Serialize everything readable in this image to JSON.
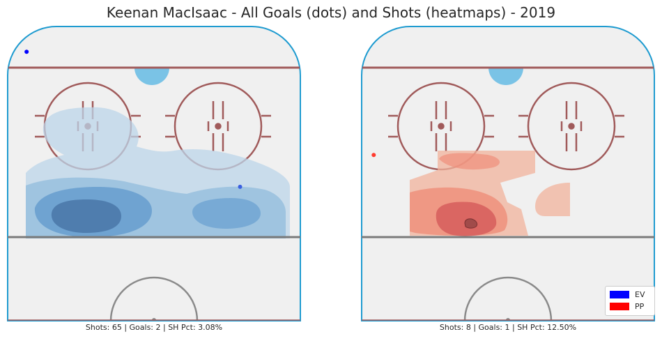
{
  "title": "Keenan MacIsaac - All Goals (dots) and Shots (heatmaps) - 2019",
  "colors": {
    "rink_fill": "#f0f0f0",
    "boards": "#1e9bd0",
    "red_line": "#a05a5a",
    "crease": "#7ac3e6",
    "blue_line": "#7a7a7a",
    "ev": "#0000ff",
    "pp": "#ff0000"
  },
  "legend": {
    "items": [
      {
        "label": "EV",
        "color": "#0000ff"
      },
      {
        "label": "PP",
        "color": "#ff0000"
      }
    ]
  },
  "chart_data": [
    {
      "type": "heatmap",
      "panel": "left",
      "strength": "EV",
      "caption": "Shots: 65 | Goals: 2 | SH Pct: 3.08%",
      "shots": 65,
      "goals": 2,
      "sh_pct": "3.08%",
      "goal_dots": [
        {
          "strength": "EV",
          "x": -37,
          "y": 70
        },
        {
          "strength": "EV",
          "x": 25,
          "y": 19
        }
      ],
      "heatmap_colormap": "Blues"
    },
    {
      "type": "heatmap",
      "panel": "right",
      "strength": "PP",
      "caption": "Shots: 8 | Goals: 1 | SH Pct: 12.50%",
      "shots": 8,
      "goals": 1,
      "sh_pct": "12.50%",
      "goal_dots": [
        {
          "strength": "PP",
          "x": -39,
          "y": 31
        }
      ],
      "heatmap_colormap": "Reds"
    }
  ]
}
